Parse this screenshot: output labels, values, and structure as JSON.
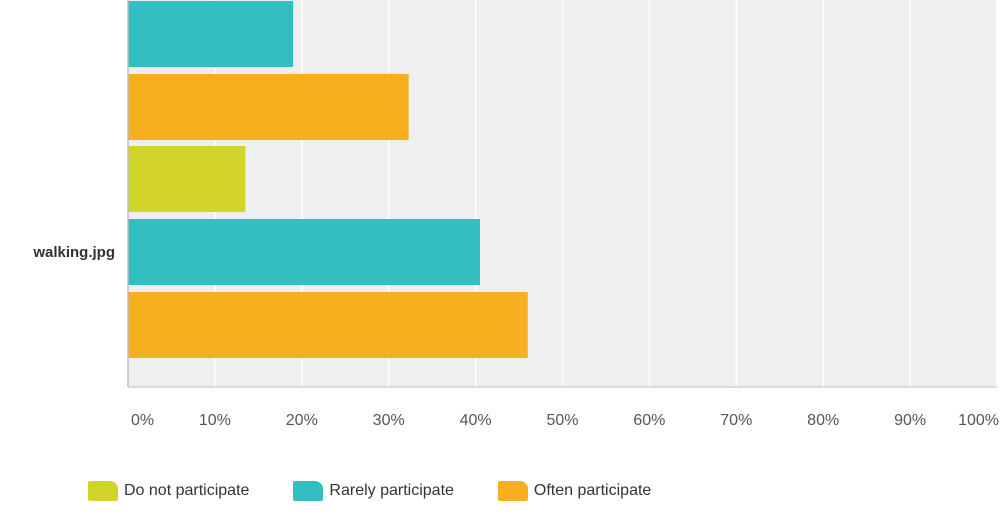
{
  "chart_data": {
    "type": "bar",
    "orientation": "horizontal",
    "categories": [
      "",
      "walking.jpg"
    ],
    "series": [
      {
        "name": "Do not participate",
        "color": "#d1d42b",
        "values": [
          null,
          13.5
        ]
      },
      {
        "name": "Rarely participate",
        "color": "#33bec1",
        "values": [
          19,
          40.5
        ]
      },
      {
        "name": "Often participate",
        "color": "#f6af1e",
        "values": [
          32.3,
          46
        ]
      }
    ],
    "x_ticks": [
      "0%",
      "10%",
      "20%",
      "30%",
      "40%",
      "50%",
      "60%",
      "70%",
      "80%",
      "90%",
      "100%"
    ],
    "xlim": [
      0,
      100
    ],
    "grid": true,
    "legend_position": "bottom"
  }
}
